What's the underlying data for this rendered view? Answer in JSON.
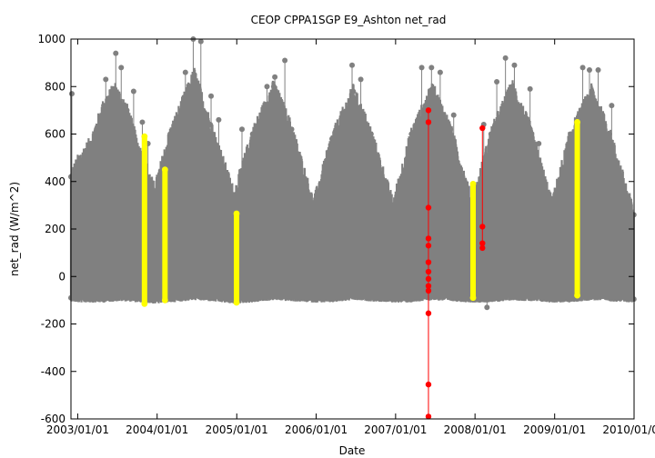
{
  "chart_data": {
    "type": "scatter",
    "title": "CEOP CPPA1SGP E9_Ashton  net_rad",
    "xlabel": "Date",
    "ylabel": "net_rad (W/m^2)",
    "xlim": [
      "2002-12-01",
      "2010-01-01"
    ],
    "ylim": [
      -600,
      1000
    ],
    "x_ticks": [
      "2003/01/01",
      "2004/01/01",
      "2005/01/01",
      "2006/01/01",
      "2007/01/01",
      "2008/01/01",
      "2009/01/01",
      "2010/01/01"
    ],
    "y_ticks": [
      -600,
      -400,
      -200,
      0,
      200,
      400,
      600,
      800,
      1000
    ],
    "grid": false,
    "colors": {
      "good": "#808080",
      "questionable": "#ffff00",
      "bad": "#ff0000"
    },
    "series": [
      {
        "color": "#808080",
        "envelope": [
          {
            "date": "2002-12-01",
            "min": -90,
            "max": 420
          },
          {
            "date": "2003-01-01",
            "min": -95,
            "max": 480
          },
          {
            "date": "2003-03-01",
            "min": -95,
            "max": 560
          },
          {
            "date": "2003-05-01",
            "min": -95,
            "max": 720
          },
          {
            "date": "2003-06-20",
            "min": -90,
            "max": 790
          },
          {
            "date": "2003-08-15",
            "min": -90,
            "max": 700
          },
          {
            "date": "2003-10-15",
            "min": -95,
            "max": 520
          },
          {
            "date": "2003-12-20",
            "min": -100,
            "max": 360
          },
          {
            "date": "2004-03-01",
            "min": -95,
            "max": 600
          },
          {
            "date": "2004-06-20",
            "min": -85,
            "max": 850
          },
          {
            "date": "2004-09-01",
            "min": -90,
            "max": 640
          },
          {
            "date": "2004-12-20",
            "min": -100,
            "max": 340
          },
          {
            "date": "2005-03-15",
            "min": -95,
            "max": 600
          },
          {
            "date": "2005-06-20",
            "min": -85,
            "max": 800
          },
          {
            "date": "2005-09-10",
            "min": -90,
            "max": 620
          },
          {
            "date": "2005-12-20",
            "min": -95,
            "max": 300
          },
          {
            "date": "2006-03-15",
            "min": -95,
            "max": 580
          },
          {
            "date": "2006-06-20",
            "min": -85,
            "max": 780
          },
          {
            "date": "2006-09-10",
            "min": -90,
            "max": 600
          },
          {
            "date": "2006-12-20",
            "min": -95,
            "max": 300
          },
          {
            "date": "2007-03-15",
            "min": -95,
            "max": 600
          },
          {
            "date": "2007-06-20",
            "min": -85,
            "max": 790
          },
          {
            "date": "2007-09-10",
            "min": -90,
            "max": 620
          },
          {
            "date": "2007-12-20",
            "min": -95,
            "max": 300
          },
          {
            "date": "2008-03-15",
            "min": -95,
            "max": 600
          },
          {
            "date": "2008-06-20",
            "min": -85,
            "max": 800
          },
          {
            "date": "2008-09-10",
            "min": -90,
            "max": 620
          },
          {
            "date": "2008-12-20",
            "min": -95,
            "max": 300
          },
          {
            "date": "2009-03-15",
            "min": -95,
            "max": 600
          },
          {
            "date": "2009-06-20",
            "min": -85,
            "max": 780
          },
          {
            "date": "2009-09-10",
            "min": -90,
            "max": 600
          },
          {
            "date": "2009-12-31",
            "min": -95,
            "max": 260
          }
        ],
        "peaks": [
          {
            "date": "2002-12-05",
            "value": 770
          },
          {
            "date": "2003-05-10",
            "value": 830
          },
          {
            "date": "2003-06-25",
            "value": 940
          },
          {
            "date": "2003-07-20",
            "value": 880
          },
          {
            "date": "2003-09-15",
            "value": 780
          },
          {
            "date": "2003-10-25",
            "value": 650
          },
          {
            "date": "2003-11-20",
            "value": 560
          },
          {
            "date": "2004-05-10",
            "value": 860
          },
          {
            "date": "2004-06-15",
            "value": 1000
          },
          {
            "date": "2004-07-20",
            "value": 990
          },
          {
            "date": "2004-09-05",
            "value": 760
          },
          {
            "date": "2004-10-10",
            "value": 660
          },
          {
            "date": "2005-01-25",
            "value": 620
          },
          {
            "date": "2005-05-20",
            "value": 800
          },
          {
            "date": "2005-06-25",
            "value": 840
          },
          {
            "date": "2005-08-10",
            "value": 910
          },
          {
            "date": "2006-06-15",
            "value": 890
          },
          {
            "date": "2006-07-25",
            "value": 830
          },
          {
            "date": "2007-05-01",
            "value": 880
          },
          {
            "date": "2007-06-15",
            "value": 880
          },
          {
            "date": "2007-07-25",
            "value": 860
          },
          {
            "date": "2007-09-25",
            "value": 680
          },
          {
            "date": "2008-02-10",
            "value": 640
          },
          {
            "date": "2008-02-25",
            "value": -130
          },
          {
            "date": "2008-04-10",
            "value": 820
          },
          {
            "date": "2008-05-20",
            "value": 920
          },
          {
            "date": "2008-06-30",
            "value": 890
          },
          {
            "date": "2008-09-10",
            "value": 790
          },
          {
            "date": "2008-10-20",
            "value": 560
          },
          {
            "date": "2009-05-10",
            "value": 880
          },
          {
            "date": "2009-06-10",
            "value": 870
          },
          {
            "date": "2009-07-20",
            "value": 870
          },
          {
            "date": "2009-09-20",
            "value": 720
          }
        ]
      },
      {
        "color": "#ffff00",
        "bands": [
          {
            "date": "2003-11-04",
            "min": -115,
            "max": 590
          },
          {
            "date": "2004-02-06",
            "min": -100,
            "max": 450
          },
          {
            "date": "2004-12-31",
            "min": -110,
            "max": 265
          },
          {
            "date": "2007-12-23",
            "min": -90,
            "max": 390
          },
          {
            "date": "2009-04-15",
            "min": -80,
            "max": 650
          }
        ]
      },
      {
        "color": "#ff0000",
        "points": [
          {
            "date": "2007-06-01",
            "value": 700
          },
          {
            "date": "2007-06-01",
            "value": 650
          },
          {
            "date": "2007-06-01",
            "value": 290
          },
          {
            "date": "2007-06-01",
            "value": 160
          },
          {
            "date": "2007-06-01",
            "value": 130
          },
          {
            "date": "2007-06-01",
            "value": 60
          },
          {
            "date": "2007-06-01",
            "value": 20
          },
          {
            "date": "2007-06-01",
            "value": -10
          },
          {
            "date": "2007-06-01",
            "value": -40
          },
          {
            "date": "2007-06-01",
            "value": -60
          },
          {
            "date": "2007-06-01",
            "value": -155
          },
          {
            "date": "2007-06-01",
            "value": -455
          },
          {
            "date": "2007-06-01",
            "value": -590
          },
          {
            "date": "2008-02-04",
            "value": 625
          },
          {
            "date": "2008-02-04",
            "value": 210
          },
          {
            "date": "2008-02-04",
            "value": 140
          },
          {
            "date": "2008-02-04",
            "value": 120
          }
        ]
      }
    ]
  }
}
